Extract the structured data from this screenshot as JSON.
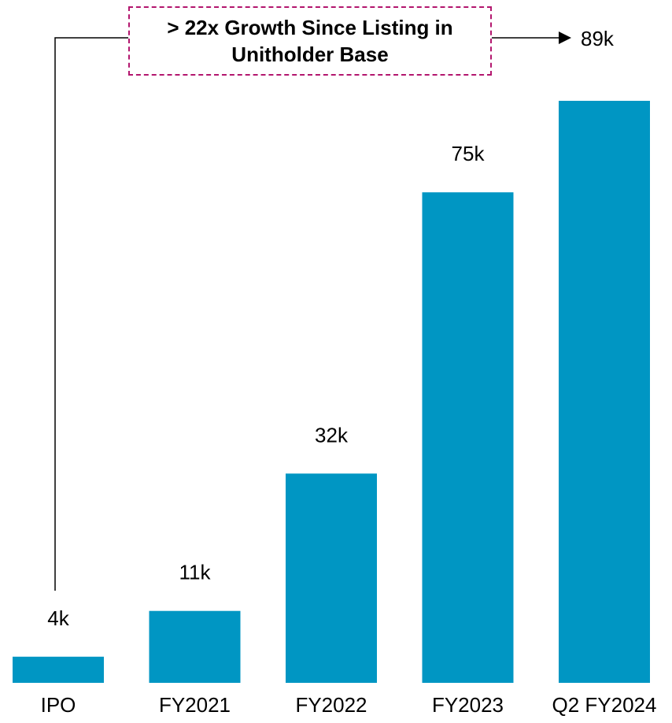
{
  "chart_data": {
    "type": "bar",
    "categories": [
      "IPO",
      "FY2021",
      "FY2022",
      "FY2023",
      "Q2 FY2024"
    ],
    "values": [
      4,
      11,
      32,
      75,
      89
    ],
    "value_labels": [
      "4k",
      "11k",
      "32k",
      "75k",
      "89k"
    ],
    "ylim": [
      0,
      89
    ],
    "grid": false,
    "bar_color": "#0096c3",
    "annotation": {
      "text": "> 22x Growth Since Listing in\nUnitholder Base",
      "border_color": "#b3166e"
    }
  }
}
